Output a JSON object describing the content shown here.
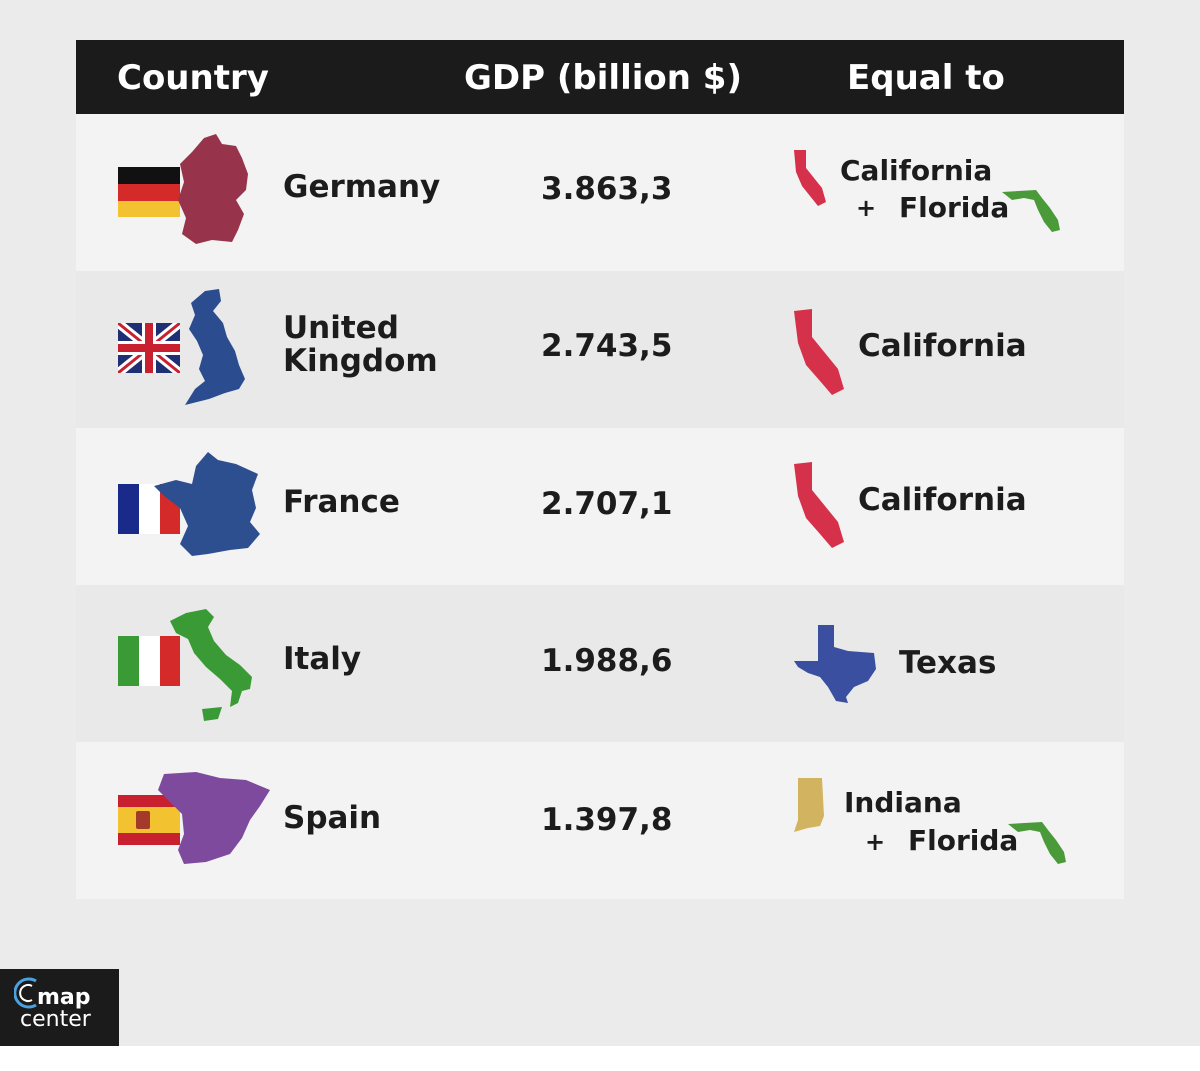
{
  "chart_data": {
    "type": "table",
    "columns": [
      "Country",
      "GDP (billion $)",
      "Equal to"
    ],
    "rows": [
      {
        "country": "Germany",
        "gdp": "3.863,3",
        "equal_to": [
          "California",
          "Florida"
        ]
      },
      {
        "country": "United Kingdom",
        "gdp": "2.743,5",
        "equal_to": [
          "California"
        ]
      },
      {
        "country": "France",
        "gdp": "2.707,1",
        "equal_to": [
          "California"
        ]
      },
      {
        "country": "Italy",
        "gdp": "1.988,6",
        "equal_to": [
          "Texas"
        ]
      },
      {
        "country": "Spain",
        "gdp": "1.397,8",
        "equal_to": [
          "Indiana",
          "Florida"
        ]
      }
    ]
  },
  "table": {
    "header": {
      "country": "Country",
      "gdp": "GDP (billion $)",
      "equal": "Equal to"
    },
    "rows": [
      {
        "country_line1": "Germany",
        "gdp": "3.863,3",
        "eq1": "California",
        "plus": "+",
        "eq2": "Florida",
        "map_color": "#97334a"
      },
      {
        "country_line1": "United",
        "country_line2": "Kingdom",
        "gdp": "2.743,5",
        "eq1": "California",
        "map_color": "#2b4c8f"
      },
      {
        "country_line1": "France",
        "gdp": "2.707,1",
        "eq1": "California",
        "map_color": "#2e4f8f"
      },
      {
        "country_line1": "Italy",
        "gdp": "1.988,6",
        "eq1": "Texas",
        "map_color": "#3a9a35"
      },
      {
        "country_line1": "Spain",
        "gdp": "1.397,8",
        "eq1": "Indiana",
        "plus": "+",
        "eq2": "Florida",
        "map_color": "#7e4a9e"
      }
    ]
  },
  "colors": {
    "header_bg": "#1b1b1b",
    "california": "#d6314a",
    "florida": "#4a9a3a",
    "texas": "#3a4fa0",
    "indiana": "#d2b360"
  },
  "icons": [
    "germany-flag-icon",
    "germany-map-icon",
    "uk-flag-icon",
    "uk-map-icon",
    "france-flag-icon",
    "france-map-icon",
    "italy-flag-icon",
    "italy-map-icon",
    "spain-flag-icon",
    "spain-map-icon",
    "california-map-icon",
    "florida-map-icon",
    "texas-map-icon",
    "indiana-map-icon"
  ],
  "logo": {
    "line1": "map",
    "line2": "center"
  }
}
